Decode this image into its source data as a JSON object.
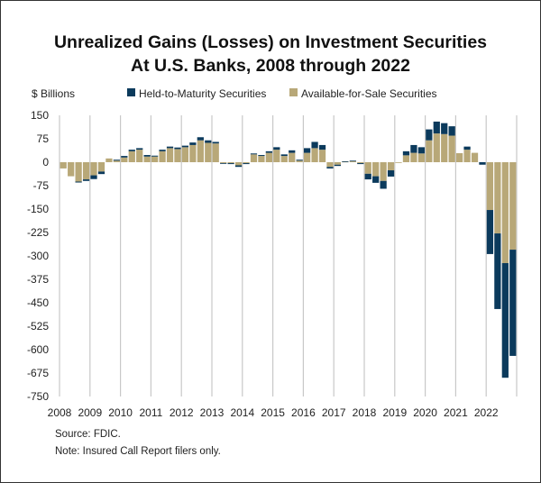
{
  "chart_data": {
    "type": "bar",
    "stacked": true,
    "title": "Unrealized Gains (Losses) on Investment Securities",
    "subtitle": "At U.S. Banks, 2008 through 2022",
    "ylabel": "$ Billions",
    "xlabel": "",
    "ylim": [
      -750,
      150
    ],
    "yticks": [
      150,
      75,
      0,
      -75,
      -150,
      -225,
      -300,
      -375,
      -450,
      -525,
      -600,
      -675,
      -750
    ],
    "xtick_labels": [
      "2008",
      "2009",
      "2010",
      "2011",
      "2012",
      "2013",
      "2014",
      "2015",
      "2016",
      "2017",
      "2018",
      "2019",
      "2020",
      "2021",
      "2022"
    ],
    "frequency": "quarterly",
    "legend": {
      "placement": "top",
      "entries": [
        "Held-to-Maturity Securities",
        "Available-for-Sale Securities"
      ]
    },
    "colors": {
      "htm": "#0b3a5c",
      "afs": "#b8a878"
    },
    "series": [
      {
        "name": "Available-for-Sale Securities",
        "values": [
          -20,
          -45,
          -62,
          -55,
          -42,
          -30,
          12,
          5,
          15,
          35,
          40,
          18,
          18,
          35,
          45,
          42,
          48,
          55,
          70,
          62,
          60,
          -3,
          -3,
          -10,
          -3,
          25,
          20,
          30,
          40,
          20,
          30,
          5,
          30,
          45,
          40,
          -15,
          -8,
          2,
          3,
          -3,
          -37,
          -45,
          -60,
          -26,
          -2,
          22,
          30,
          28,
          70,
          92,
          90,
          85,
          29,
          40,
          30,
          0,
          -153,
          -228,
          -323,
          -280
        ]
      },
      {
        "name": "Held-to-Maturity Securities",
        "values": [
          0,
          0,
          -3,
          -5,
          -12,
          -8,
          0,
          3,
          5,
          5,
          5,
          5,
          3,
          5,
          5,
          5,
          5,
          8,
          10,
          8,
          5,
          -2,
          -3,
          -5,
          -3,
          3,
          3,
          5,
          8,
          5,
          8,
          3,
          15,
          20,
          15,
          -5,
          -4,
          1,
          2,
          -3,
          -18,
          -21,
          -25,
          -20,
          0,
          13,
          25,
          20,
          35,
          38,
          35,
          30,
          0,
          10,
          0,
          -8,
          -141,
          -242,
          -367,
          -340
        ]
      }
    ],
    "source": "Source: FDIC.",
    "note": "Note: Insured Call Report filers only."
  }
}
